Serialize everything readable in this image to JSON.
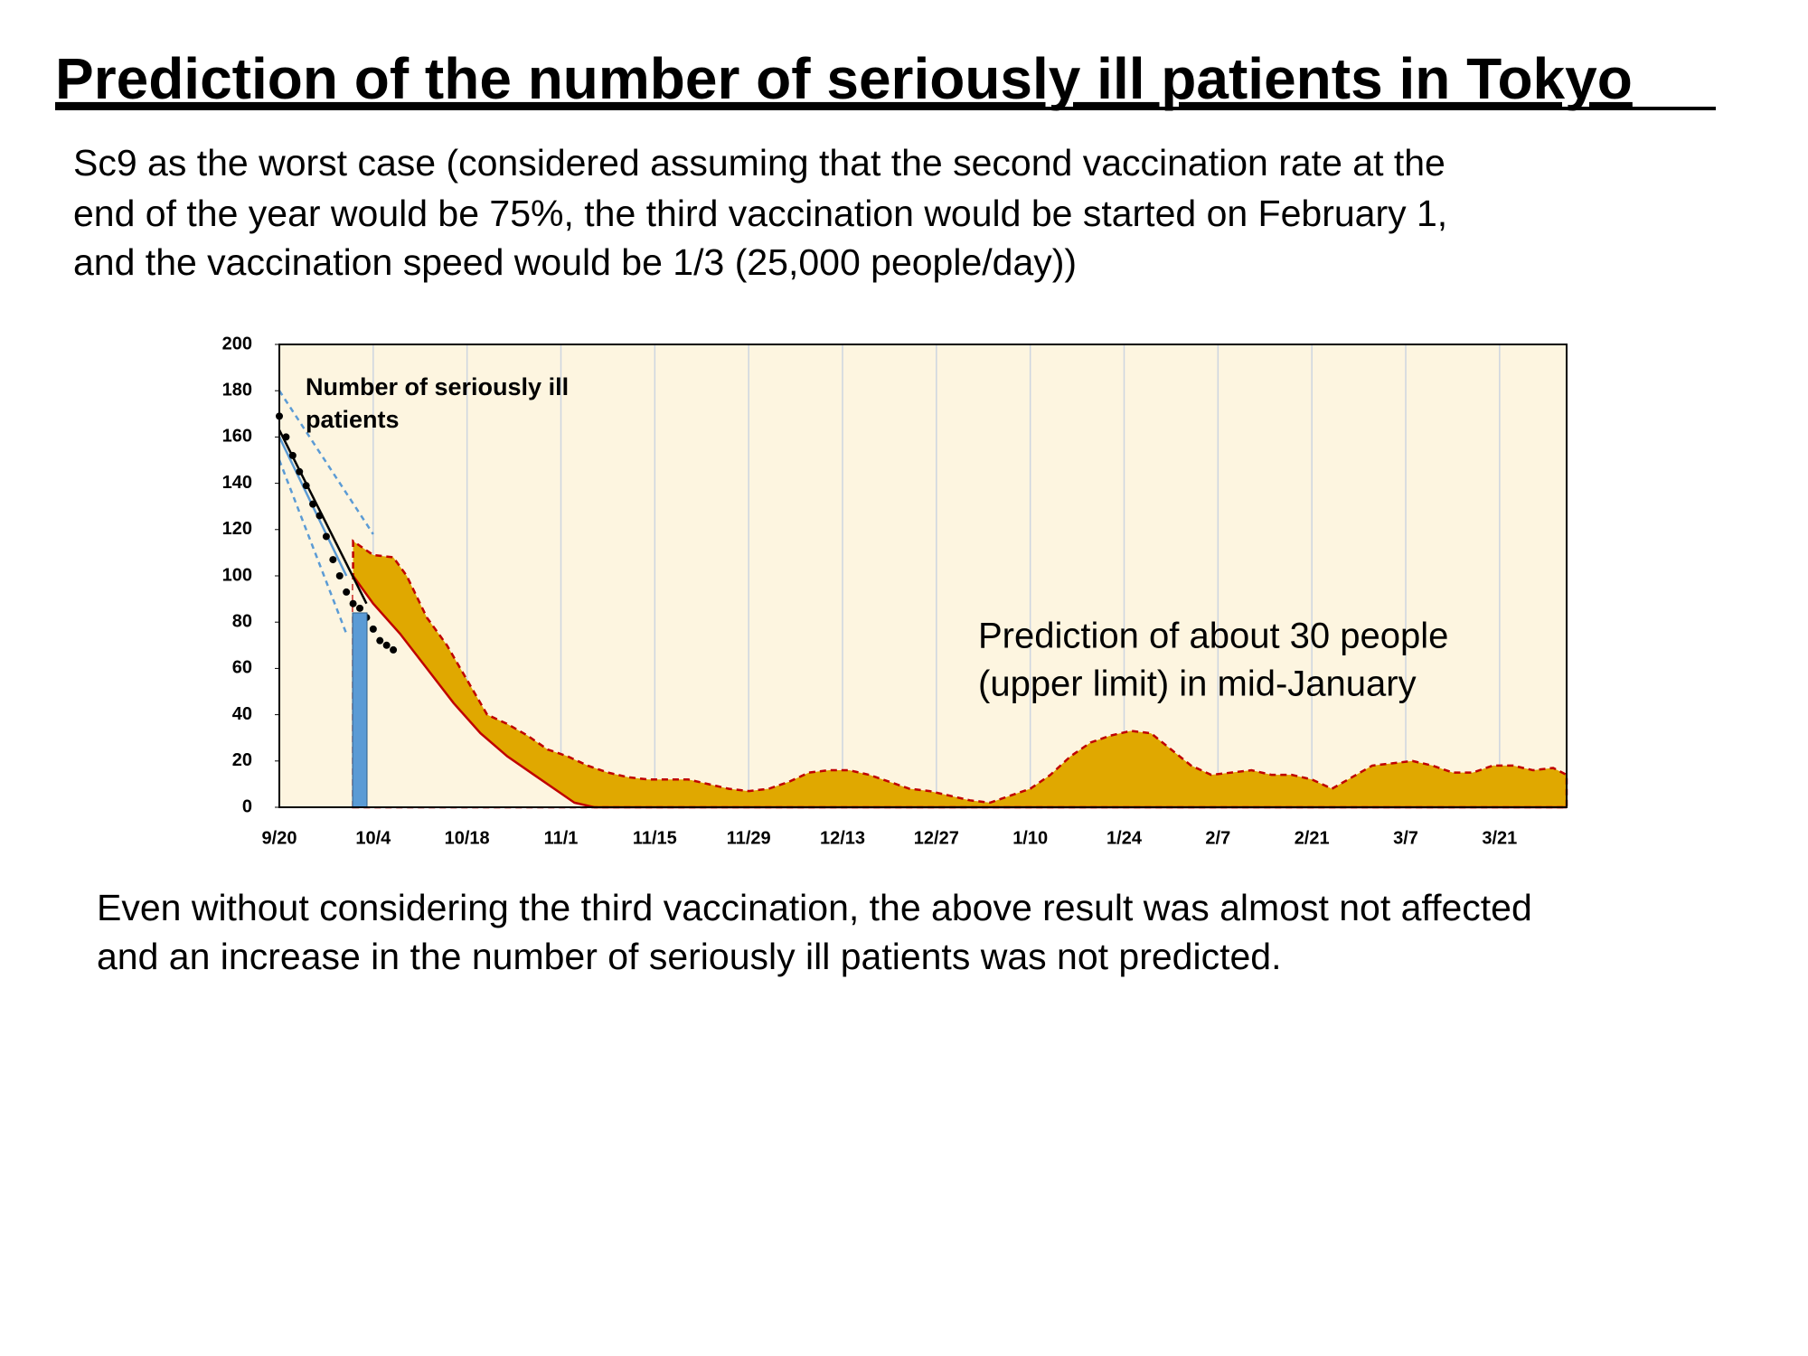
{
  "header": {
    "title": "Prediction of the number of seriously ill patients in Tokyo",
    "subtitle": [
      "Sc9 as the worst case (considered assuming that the second vaccination rate at the",
      "end of the year would be 75%, the third vaccination would be started on February 1,",
      "and the vaccination speed would be 1/3 (25,000 people/day))"
    ]
  },
  "chart_data": {
    "type": "combo",
    "label": [
      "Number of seriously ill",
      "patients"
    ],
    "annotation": [
      "Prediction of about 30 people",
      "(upper limit) in mid-January"
    ],
    "xlim": [
      "9/20",
      "3/31"
    ],
    "xticks": [
      "9/20",
      "10/4",
      "10/18",
      "11/1",
      "11/15",
      "11/29",
      "12/13",
      "12/27",
      "1/10",
      "1/24",
      "2/7",
      "2/21",
      "3/7",
      "3/21"
    ],
    "ylim": [
      0,
      200
    ],
    "yticks": [
      0,
      20,
      40,
      60,
      80,
      100,
      120,
      140,
      160,
      180,
      200
    ],
    "grid": true,
    "background": "#fdf5e0",
    "series": [
      {
        "type": "area",
        "color": "#c00000",
        "fill": "#e0a800",
        "dash": true,
        "x": [
          "10/1",
          "10/4",
          "10/7",
          "10/9",
          "10/12",
          "10/15",
          "10/18",
          "10/21",
          "10/24",
          "10/27",
          "10/30",
          "11/2",
          "11/5",
          "11/8",
          "11/11",
          "11/14",
          "11/17",
          "11/20",
          "11/23",
          "11/26",
          "11/29",
          "12/2",
          "12/5",
          "12/8",
          "12/11",
          "12/14",
          "12/17",
          "12/20",
          "12/23",
          "12/26",
          "12/29",
          "1/1",
          "1/4",
          "1/7",
          "1/10",
          "1/13",
          "1/16",
          "1/19",
          "1/22",
          "1/25",
          "1/28",
          "1/31",
          "2/3",
          "2/6",
          "2/9",
          "2/12",
          "2/15",
          "2/18",
          "2/21",
          "2/24",
          "2/27",
          "3/2",
          "3/5",
          "3/8",
          "3/11",
          "3/14",
          "3/17",
          "3/20",
          "3/23",
          "3/26",
          "3/29",
          "3/31"
        ],
        "values": [
          115,
          109,
          108,
          100,
          82,
          70,
          55,
          40,
          36,
          31,
          25,
          22,
          18,
          15,
          13,
          12,
          12,
          12,
          10,
          8,
          7,
          8,
          11,
          15,
          16,
          16,
          14,
          11,
          8,
          7,
          5,
          3,
          2,
          5,
          8,
          14,
          22,
          28,
          31,
          33,
          32,
          25,
          18,
          14,
          15,
          16,
          14,
          14,
          12,
          8,
          13,
          18,
          19,
          20,
          18,
          15,
          15,
          18,
          18,
          16,
          17,
          14
        ]
      },
      {
        "type": "area",
        "color": "#c00000",
        "fill": "#fdf5e0",
        "dash": false,
        "x": [
          "10/1",
          "10/4",
          "10/8",
          "10/12",
          "10/16",
          "10/20",
          "10/24",
          "10/28",
          "11/1",
          "11/3",
          "11/6",
          "3/31"
        ],
        "values": [
          100,
          88,
          75,
          60,
          45,
          32,
          22,
          14,
          6,
          2,
          0,
          0
        ]
      },
      {
        "type": "line",
        "color": "#5b9bd5",
        "dash": true,
        "x": [
          "9/20",
          "10/4"
        ],
        "values": [
          180,
          118
        ]
      },
      {
        "type": "line",
        "color": "#5b9bd5",
        "dash": true,
        "x": [
          "9/20",
          "9/30"
        ],
        "values": [
          150,
          75
        ]
      },
      {
        "type": "line",
        "color": "#5b9bd5",
        "dash": false,
        "x": [
          "9/20",
          "9/30"
        ],
        "values": [
          160,
          100
        ]
      },
      {
        "type": "line",
        "color": "#000000",
        "dash": false,
        "x": [
          "9/20",
          "10/3"
        ],
        "values": [
          163,
          88
        ]
      },
      {
        "type": "scatter",
        "color": "#000000",
        "x": [
          "9/20",
          "9/21",
          "9/22",
          "9/23",
          "9/24",
          "9/25",
          "9/26",
          "9/27",
          "9/28",
          "9/29",
          "9/30",
          "10/1",
          "10/2",
          "10/3",
          "10/4",
          "10/5",
          "10/6",
          "10/7"
        ],
        "values": [
          169,
          160,
          152,
          145,
          139,
          131,
          126,
          117,
          107,
          100,
          93,
          88,
          86,
          82,
          77,
          72,
          70,
          68
        ]
      },
      {
        "type": "bar",
        "color": "#5b9bd5",
        "x": [
          "10/2"
        ],
        "values": [
          84
        ]
      }
    ]
  },
  "footer": {
    "note": [
      "Even without considering the third vaccination, the above result was almost not affected",
      "and an increase in the number of seriously ill patients was not predicted."
    ]
  }
}
